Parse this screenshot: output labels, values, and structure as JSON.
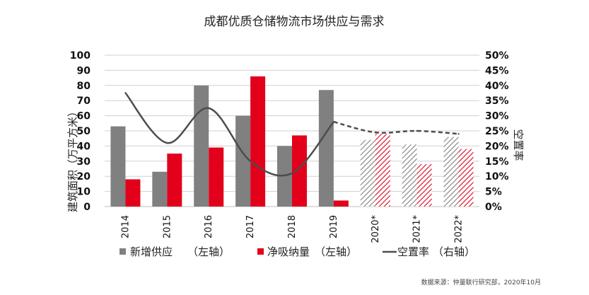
{
  "chart_data": {
    "type": "bar",
    "title": "成都优质仓储物流市场供应与需求",
    "categories": [
      "2014",
      "2015",
      "2016",
      "2017",
      "2018",
      "2019",
      "2020*",
      "2021*",
      "2022*"
    ],
    "forecast_categories": [
      "2020*",
      "2021*",
      "2022*"
    ],
    "ylabel": "建筑面积（万平方米）",
    "y2label": "空置率",
    "ylim": [
      0,
      100
    ],
    "y2lim": [
      0,
      0.5
    ],
    "yticks": [
      "0",
      "10",
      "20",
      "30",
      "40",
      "50",
      "60",
      "70",
      "80",
      "90",
      "100"
    ],
    "y2ticks": [
      "0%",
      "5%",
      "10%",
      "15%",
      "20%",
      "25%",
      "30%",
      "35%",
      "40%",
      "45%",
      "50%"
    ],
    "grid": true,
    "legend_position": "bottom",
    "series": [
      {
        "name": "新增供应",
        "axis_label": "（左轴）",
        "type": "bar",
        "color": "#808080",
        "values": [
          53,
          23,
          80,
          60,
          40,
          77,
          44,
          41,
          46
        ]
      },
      {
        "name": "净吸纳量",
        "axis_label": "（左轴）",
        "type": "bar",
        "color": "#e2001a",
        "values": [
          18,
          35,
          39,
          86,
          47,
          4,
          48,
          28,
          38
        ]
      },
      {
        "name": "空置率",
        "axis_label": "（右轴）",
        "type": "line",
        "color": "#4d4d4d",
        "values": [
          0.375,
          0.21,
          0.325,
          0.15,
          0.11,
          0.28,
          0.245,
          0.25,
          0.24
        ]
      }
    ],
    "source": "数据来源：仲量联行研究部，2020年10月"
  }
}
